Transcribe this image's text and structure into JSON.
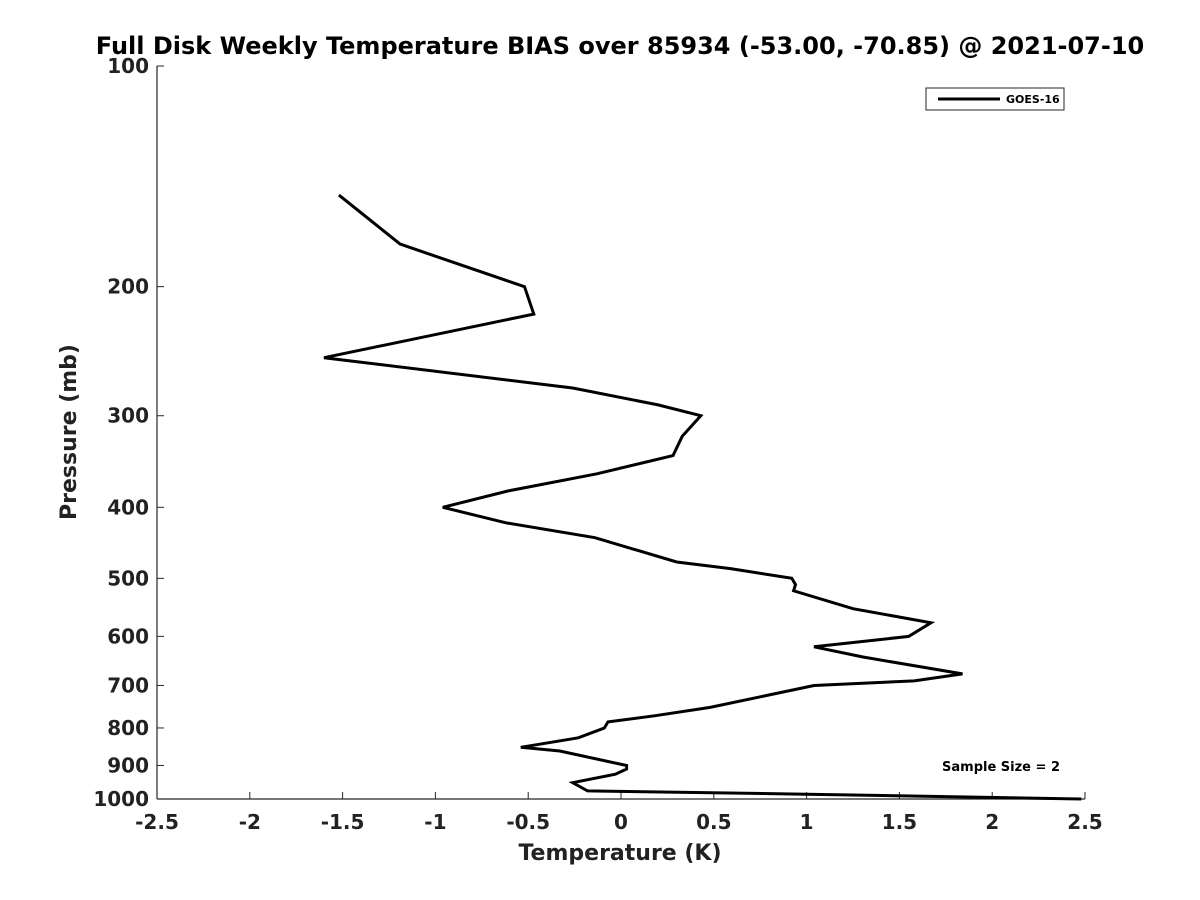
{
  "chart_data": {
    "type": "line",
    "title": "Full Disk Weekly Temperature BIAS over 85934 (-53.00, -70.85) @ 2021-07-10",
    "xlabel": "Temperature (K)",
    "ylabel": "Pressure (mb)",
    "xlim": [
      -2.5,
      2.5
    ],
    "ylim": [
      1000,
      100
    ],
    "yscale": "log",
    "xticks": [
      -2.5,
      -2,
      -1.5,
      -1,
      -0.5,
      0,
      0.5,
      1,
      1.5,
      2,
      2.5
    ],
    "xtick_labels": [
      "-2.5",
      "-2",
      "-1.5",
      "-1",
      "-0.5",
      "0",
      "0.5",
      "1",
      "1.5",
      "2",
      "2.5"
    ],
    "yticks": [
      100,
      200,
      300,
      400,
      500,
      600,
      700,
      800,
      900,
      1000
    ],
    "ytick_labels": [
      "100",
      "200",
      "300",
      "400",
      "500",
      "600",
      "700",
      "800",
      "900",
      "1000"
    ],
    "grid": false,
    "legend_position": "top-right",
    "annotation": "Sample Size = 2",
    "series": [
      {
        "name": "GOES-16",
        "color": "#000000",
        "points": [
          {
            "x": -1.52,
            "y": 150
          },
          {
            "x": -1.19,
            "y": 175
          },
          {
            "x": -0.52,
            "y": 200
          },
          {
            "x": -0.47,
            "y": 218
          },
          {
            "x": -1.6,
            "y": 250
          },
          {
            "x": -0.26,
            "y": 275
          },
          {
            "x": 0.2,
            "y": 290
          },
          {
            "x": 0.43,
            "y": 300
          },
          {
            "x": 0.33,
            "y": 320
          },
          {
            "x": 0.28,
            "y": 340
          },
          {
            "x": -0.13,
            "y": 360
          },
          {
            "x": -0.61,
            "y": 380
          },
          {
            "x": -0.96,
            "y": 400
          },
          {
            "x": -0.62,
            "y": 420
          },
          {
            "x": -0.14,
            "y": 440
          },
          {
            "x": 0.3,
            "y": 475
          },
          {
            "x": 0.59,
            "y": 485
          },
          {
            "x": 0.92,
            "y": 500
          },
          {
            "x": 0.94,
            "y": 510
          },
          {
            "x": 0.93,
            "y": 520
          },
          {
            "x": 1.25,
            "y": 550
          },
          {
            "x": 1.67,
            "y": 575
          },
          {
            "x": 1.55,
            "y": 600
          },
          {
            "x": 1.04,
            "y": 620
          },
          {
            "x": 1.3,
            "y": 640
          },
          {
            "x": 1.84,
            "y": 675
          },
          {
            "x": 1.58,
            "y": 690
          },
          {
            "x": 1.04,
            "y": 700
          },
          {
            "x": 0.48,
            "y": 750
          },
          {
            "x": 0.18,
            "y": 770
          },
          {
            "x": -0.07,
            "y": 785
          },
          {
            "x": -0.09,
            "y": 800
          },
          {
            "x": -0.23,
            "y": 825
          },
          {
            "x": -0.54,
            "y": 850
          },
          {
            "x": -0.33,
            "y": 860
          },
          {
            "x": 0.03,
            "y": 900
          },
          {
            "x": 0.03,
            "y": 910
          },
          {
            "x": -0.03,
            "y": 925
          },
          {
            "x": -0.26,
            "y": 950
          },
          {
            "x": -0.18,
            "y": 975
          },
          {
            "x": 1.0,
            "y": 985
          },
          {
            "x": 2.48,
            "y": 1000
          }
        ]
      }
    ]
  }
}
